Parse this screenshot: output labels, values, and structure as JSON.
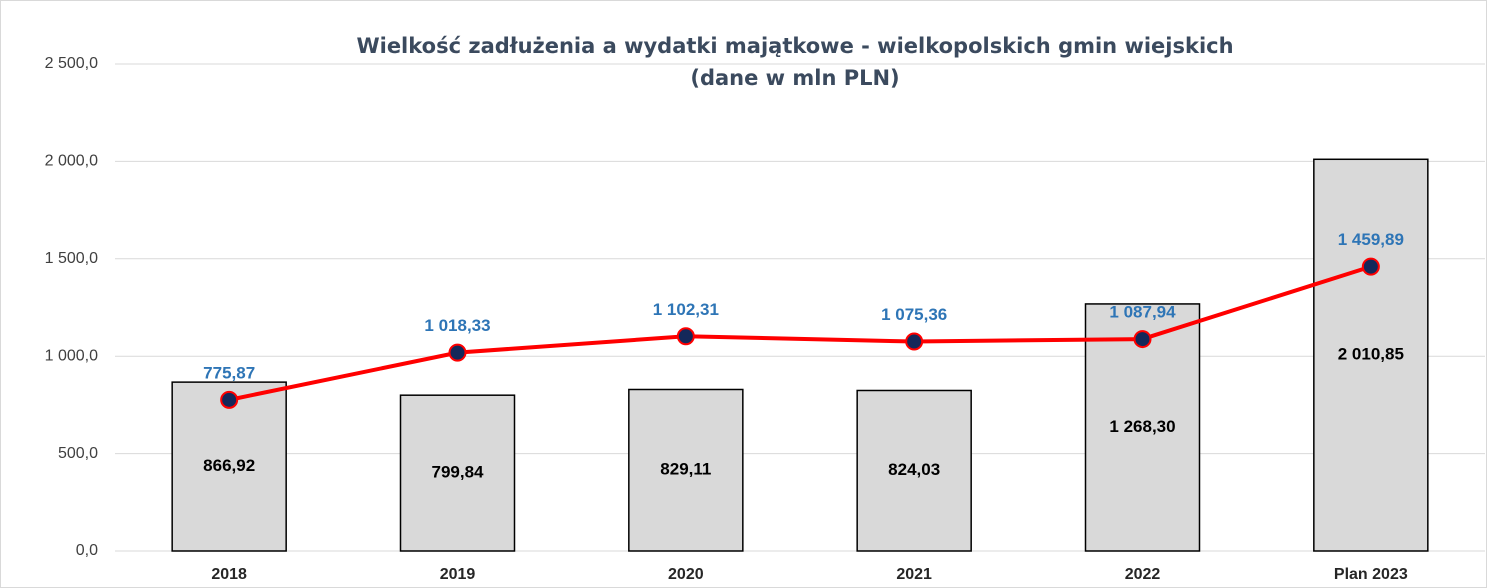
{
  "chart_data": {
    "type": "bar",
    "title": "Wielkość zadłużenia a wydatki majątkowe - wielkopolskich gmin wiejskich",
    "subtitle": "(dane w mln PLN)",
    "categories": [
      "2018",
      "2019",
      "2020",
      "2021",
      "2022",
      "Plan 2023"
    ],
    "series": [
      {
        "type": "bar",
        "color": "#d9d9d9",
        "values": [
          866.92,
          799.84,
          829.11,
          824.03,
          1268.3,
          2010.85
        ],
        "value_labels": [
          "866,92",
          "799,84",
          "829,11",
          "824,03",
          "1 268,30",
          "2 010,85"
        ]
      },
      {
        "type": "line",
        "color": "#ff0000",
        "values": [
          775.87,
          1018.33,
          1102.31,
          1075.36,
          1087.94,
          1459.89
        ],
        "value_labels": [
          "775,87",
          "1 018,33",
          "1 102,31",
          "1 075,36",
          "1 087,94",
          "1 459,89"
        ]
      }
    ],
    "ylim": [
      0,
      2500
    ],
    "yticks": [
      {
        "value": 0,
        "label": "0,0"
      },
      {
        "value": 500,
        "label": "500,0"
      },
      {
        "value": 1000,
        "label": "1 000,0"
      },
      {
        "value": 1500,
        "label": "1 500,0"
      },
      {
        "value": 2000,
        "label": "2 000,0"
      },
      {
        "value": 2500,
        "label": "2 500,0"
      }
    ],
    "grid": true
  }
}
